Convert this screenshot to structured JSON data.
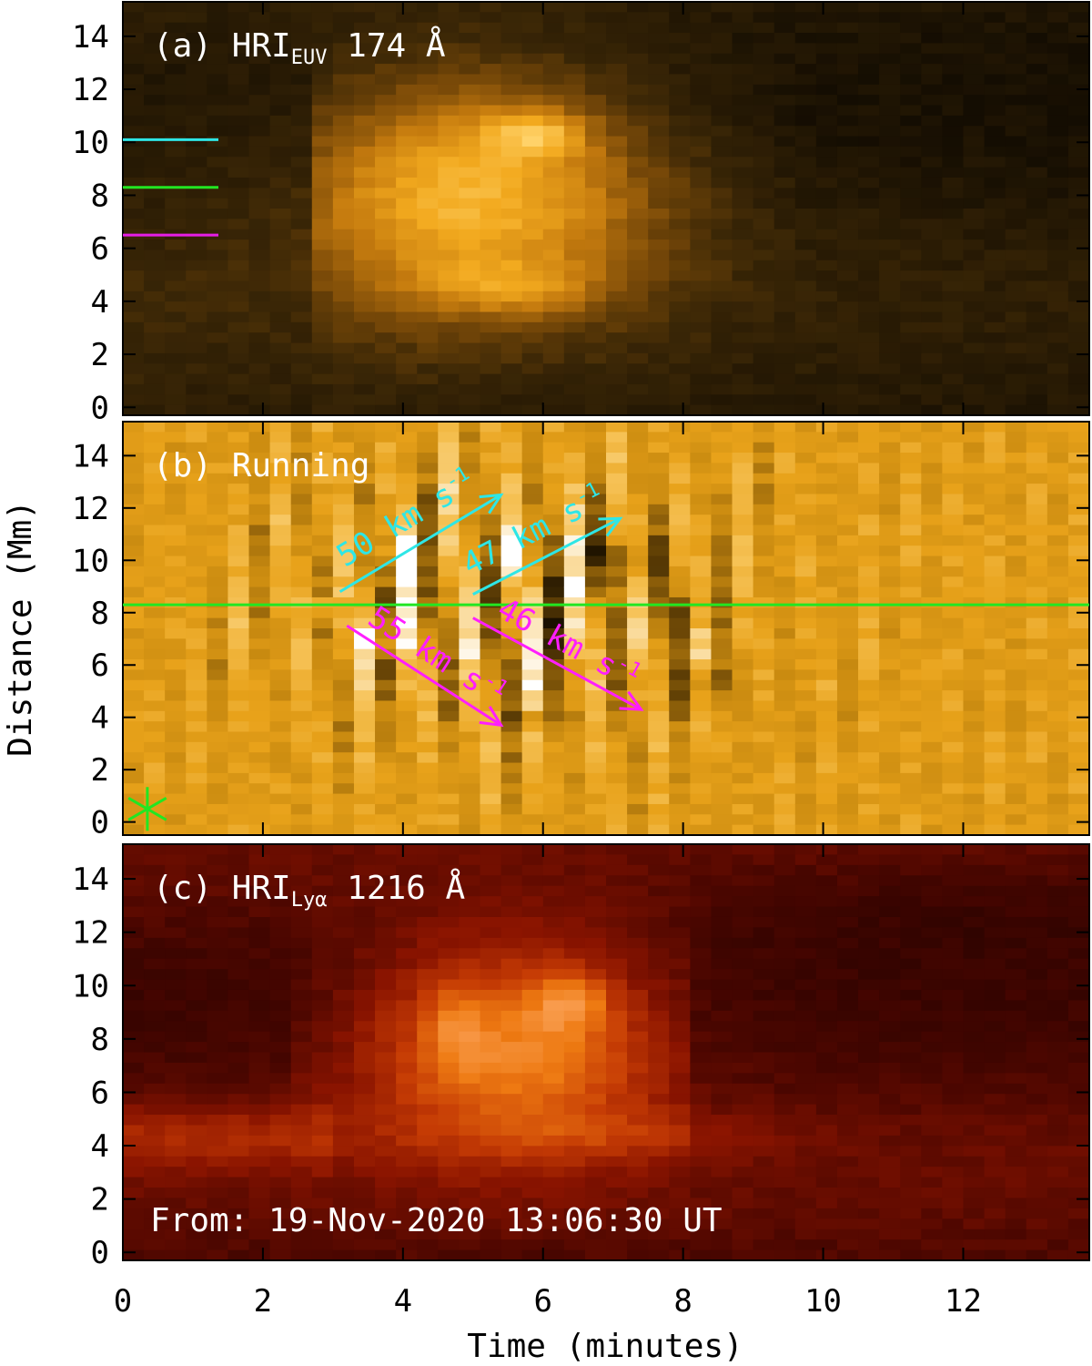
{
  "chart_data": [
    {
      "type": "heatmap",
      "panel": "a",
      "title": "(a) HRI",
      "title_subscript": "EUV",
      "title_suffix": " 174 Å",
      "xlim": [
        0,
        13.8
      ],
      "ylim": [
        -0.3,
        15.3
      ],
      "yticks": [
        0,
        2,
        4,
        6,
        8,
        10,
        12,
        14
      ],
      "xticks": [
        0,
        2,
        4,
        6,
        8,
        10,
        12
      ],
      "colormap": [
        "#140d02",
        "#3a2606",
        "#7a4a08",
        "#c47a0e",
        "#f2a91e",
        "#ffd36b",
        "#ffffff"
      ],
      "markers": [
        {
          "y": 10.1,
          "color": "#2ee6e6"
        },
        {
          "y": 8.3,
          "color": "#22e622"
        },
        {
          "y": 6.5,
          "color": "#e61ee6"
        }
      ]
    },
    {
      "type": "heatmap",
      "panel": "b",
      "title": "(b) Running",
      "xlim": [
        0,
        13.8
      ],
      "ylim": [
        -0.5,
        15.3
      ],
      "yticks": [
        0,
        2,
        4,
        6,
        8,
        10,
        12,
        14
      ],
      "xticks": [
        0,
        2,
        4,
        6,
        8,
        10,
        12
      ],
      "colormap": [
        "#1a1000",
        "#6a4606",
        "#c98a10",
        "#e8a21a",
        "#f6c256",
        "#ffffff"
      ],
      "cut_line": {
        "y": 8.3,
        "color": "#22e622"
      },
      "star": {
        "x": 0.35,
        "y": 0.5,
        "color": "#22e622"
      },
      "annotations": [
        {
          "text": "50 km s",
          "sup": "-1",
          "color": "#2ee6e6",
          "x0": 3.1,
          "y0": 8.8,
          "x1": 5.4,
          "y1": 12.5
        },
        {
          "text": "47 km s",
          "sup": "-1",
          "color": "#2ee6e6",
          "x0": 5.0,
          "y0": 8.7,
          "x1": 7.1,
          "y1": 11.6
        },
        {
          "text": "55 km s",
          "sup": "-1",
          "color": "#ff1eff",
          "x0": 3.2,
          "y0": 7.5,
          "x1": 5.4,
          "y1": 3.7
        },
        {
          "text": "46 km s",
          "sup": "-1",
          "color": "#ff1eff",
          "x0": 5.0,
          "y0": 7.8,
          "x1": 7.4,
          "y1": 4.3
        }
      ]
    },
    {
      "type": "heatmap",
      "panel": "c",
      "title": "(c) HRI",
      "title_subscript": "Lyα",
      "title_suffix": " 1216 Å",
      "xlim": [
        0,
        13.8
      ],
      "ylim": [
        -0.3,
        15.3
      ],
      "yticks": [
        0,
        2,
        4,
        6,
        8,
        10,
        12,
        14
      ],
      "xticks": [
        0,
        2,
        4,
        6,
        8,
        10,
        12
      ],
      "colormap": [
        "#1e0200",
        "#4a0600",
        "#8a1400",
        "#c43a04",
        "#ee7a12",
        "#ffb070",
        "#ffffff"
      ],
      "footer": "From: 19-Nov-2020 13:06:30 UT"
    }
  ],
  "axes": {
    "xlabel": "Time (minutes)",
    "ylabel": "Distance (Mm)"
  }
}
